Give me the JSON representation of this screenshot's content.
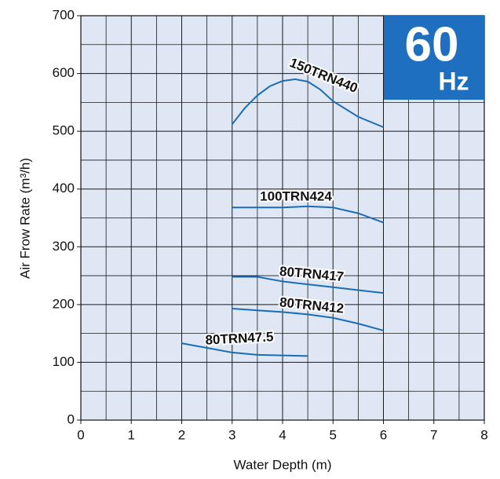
{
  "chart_data": {
    "type": "line",
    "xlabel": "Water Depth (m)",
    "ylabel": "Air Frow Rate (m³/h)",
    "badge": {
      "number": "60",
      "unit": "Hz"
    },
    "xlim": [
      0,
      8
    ],
    "xticks": [
      0,
      1,
      2,
      3,
      4,
      5,
      6,
      7,
      8
    ],
    "ylim": [
      0,
      700
    ],
    "yticks": [
      0,
      100,
      200,
      300,
      400,
      500,
      600,
      700
    ],
    "grid": true,
    "series": [
      {
        "name": "150TRN440",
        "color": "#1a6db5",
        "x": [
          3,
          3.25,
          3.5,
          3.75,
          4,
          4.25,
          4.5,
          4.75,
          5,
          5.5,
          6
        ],
        "values": [
          512,
          540,
          562,
          578,
          587,
          590,
          586,
          572,
          552,
          525,
          507
        ]
      },
      {
        "name": "100TRN424",
        "color": "#1a6db5",
        "x": [
          3,
          3.5,
          4,
          4.5,
          5,
          5.5,
          6
        ],
        "values": [
          368,
          368,
          368,
          370,
          368,
          358,
          342
        ]
      },
      {
        "name": "80TRN417",
        "color": "#1a6db5",
        "x": [
          3,
          3.5,
          4,
          4.5,
          5,
          5.5,
          6
        ],
        "values": [
          248,
          248,
          240,
          235,
          230,
          225,
          220
        ]
      },
      {
        "name": "80TRN412",
        "color": "#1a6db5",
        "x": [
          3,
          3.5,
          4,
          4.5,
          5,
          5.5,
          6
        ],
        "values": [
          193,
          190,
          187,
          183,
          177,
          167,
          155
        ]
      },
      {
        "name": "80TRN47.5",
        "color": "#1a6db5",
        "x": [
          2,
          2.5,
          3,
          3.5,
          4,
          4.5
        ],
        "values": [
          133,
          125,
          117,
          113,
          112,
          111
        ]
      }
    ]
  }
}
